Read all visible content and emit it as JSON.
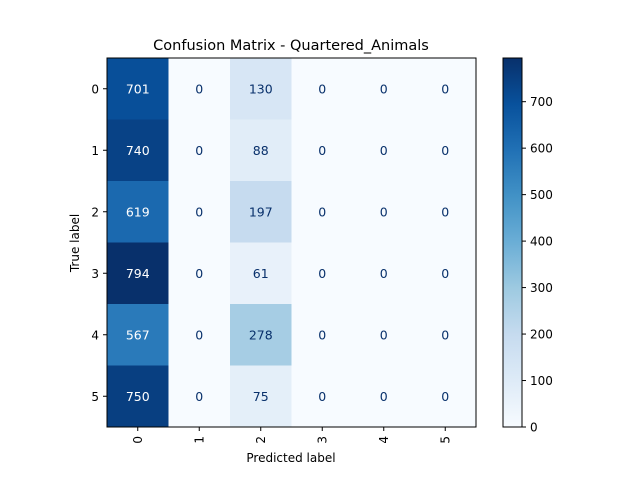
{
  "chart_data": {
    "type": "heatmap",
    "title": "Confusion Matrix - Quartered_Animals",
    "xlabel": "Predicted label",
    "ylabel": "True label",
    "x_categories": [
      "0",
      "1",
      "2",
      "3",
      "4",
      "5"
    ],
    "y_categories": [
      "0",
      "1",
      "2",
      "3",
      "4",
      "5"
    ],
    "matrix": [
      [
        701,
        0,
        130,
        0,
        0,
        0
      ],
      [
        740,
        0,
        88,
        0,
        0,
        0
      ],
      [
        619,
        0,
        197,
        0,
        0,
        0
      ],
      [
        794,
        0,
        61,
        0,
        0,
        0
      ],
      [
        567,
        0,
        278,
        0,
        0,
        0
      ],
      [
        750,
        0,
        75,
        0,
        0,
        0
      ]
    ],
    "colormap": "Blues",
    "color_range": [
      0,
      794
    ],
    "colorbar_ticks": [
      "0",
      "100",
      "200",
      "300",
      "400",
      "500",
      "600",
      "700"
    ],
    "text_color_dark_cells": "#ffffff",
    "text_color_light_cells": "#08306b"
  }
}
